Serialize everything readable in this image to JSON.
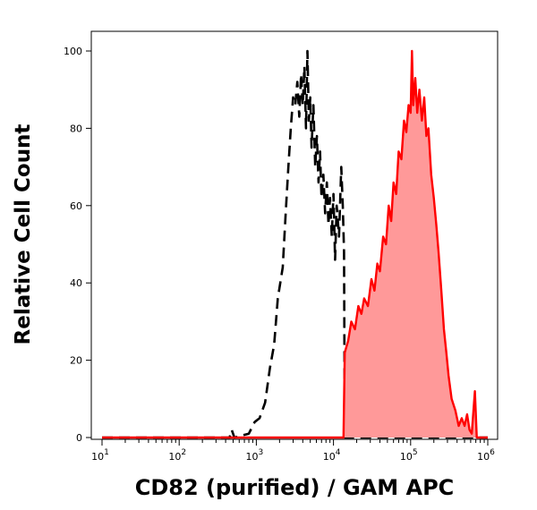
{
  "chart_data": {
    "type": "area",
    "xlabel": "CD82 (purified) / GAM APC",
    "ylabel": "Relative Cell Count",
    "x_scale": "log",
    "xlim": [
      10,
      1000000
    ],
    "ylim": [
      0,
      100
    ],
    "y_ticks": [
      0,
      20,
      40,
      60,
      80,
      100
    ],
    "x_ticks": [
      {
        "base": "10",
        "exp": "1",
        "value": 10
      },
      {
        "base": "10",
        "exp": "2",
        "value": 100
      },
      {
        "base": "10",
        "exp": "3",
        "value": 1000
      },
      {
        "base": "10",
        "exp": "4",
        "value": 10000
      },
      {
        "base": "10",
        "exp": "5",
        "value": 100000
      },
      {
        "base": "10",
        "exp": "6",
        "value": 1000000
      }
    ],
    "grid": false,
    "legend": "none",
    "series": [
      {
        "style": "dashed",
        "color": "#000000",
        "points": [
          [
            10,
            0
          ],
          [
            300,
            0
          ],
          [
            450,
            0
          ],
          [
            480,
            2
          ],
          [
            520,
            0
          ],
          [
            800,
            1
          ],
          [
            950,
            4
          ],
          [
            1100,
            5
          ],
          [
            1300,
            9
          ],
          [
            1500,
            18
          ],
          [
            1700,
            24
          ],
          [
            1900,
            36
          ],
          [
            2200,
            44
          ],
          [
            2400,
            58
          ],
          [
            2600,
            70
          ],
          [
            2800,
            80
          ],
          [
            3000,
            88
          ],
          [
            3200,
            86
          ],
          [
            3400,
            92
          ],
          [
            3600,
            83
          ],
          [
            3800,
            94
          ],
          [
            4000,
            86
          ],
          [
            4200,
            96
          ],
          [
            4400,
            80
          ],
          [
            4600,
            100
          ],
          [
            4800,
            82
          ],
          [
            5000,
            88
          ],
          [
            5200,
            75
          ],
          [
            5500,
            86
          ],
          [
            5800,
            70
          ],
          [
            6100,
            78
          ],
          [
            6400,
            66
          ],
          [
            6700,
            74
          ],
          [
            7000,
            62
          ],
          [
            7400,
            68
          ],
          [
            7800,
            58
          ],
          [
            8200,
            66
          ],
          [
            8600,
            55
          ],
          [
            9000,
            62
          ],
          [
            9500,
            52
          ],
          [
            10000,
            63
          ],
          [
            10500,
            46
          ],
          [
            11000,
            60
          ],
          [
            11800,
            52
          ],
          [
            12600,
            70
          ],
          [
            13200,
            60
          ],
          [
            13700,
            48
          ],
          [
            14000,
            0
          ],
          [
            14500,
            0
          ],
          [
            1000000,
            0
          ]
        ]
      },
      {
        "style": "filled",
        "color": "#ff0000",
        "fill": "#ff9999",
        "points": [
          [
            10,
            0
          ],
          [
            12000,
            0
          ],
          [
            13500,
            0
          ],
          [
            14000,
            22
          ],
          [
            15500,
            25
          ],
          [
            17000,
            30
          ],
          [
            19000,
            28
          ],
          [
            21000,
            34
          ],
          [
            23000,
            32
          ],
          [
            25000,
            36
          ],
          [
            28000,
            34
          ],
          [
            31000,
            41
          ],
          [
            34000,
            38
          ],
          [
            37000,
            45
          ],
          [
            40000,
            43
          ],
          [
            44000,
            52
          ],
          [
            48000,
            50
          ],
          [
            52000,
            60
          ],
          [
            56000,
            56
          ],
          [
            60000,
            66
          ],
          [
            65000,
            63
          ],
          [
            70000,
            74
          ],
          [
            76000,
            72
          ],
          [
            82000,
            82
          ],
          [
            88000,
            79
          ],
          [
            94000,
            86
          ],
          [
            100000,
            84
          ],
          [
            104000,
            100
          ],
          [
            108000,
            86
          ],
          [
            115000,
            93
          ],
          [
            122000,
            84
          ],
          [
            130000,
            90
          ],
          [
            140000,
            82
          ],
          [
            150000,
            88
          ],
          [
            160000,
            78
          ],
          [
            170000,
            80
          ],
          [
            185000,
            68
          ],
          [
            200000,
            62
          ],
          [
            215000,
            55
          ],
          [
            230000,
            48
          ],
          [
            250000,
            38
          ],
          [
            270000,
            28
          ],
          [
            290000,
            22
          ],
          [
            310000,
            16
          ],
          [
            340000,
            10
          ],
          [
            380000,
            7
          ],
          [
            420000,
            3
          ],
          [
            460000,
            5
          ],
          [
            500000,
            3
          ],
          [
            540000,
            6
          ],
          [
            580000,
            2
          ],
          [
            620000,
            1
          ],
          [
            680000,
            12
          ],
          [
            720000,
            0
          ],
          [
            1000000,
            0
          ]
        ]
      }
    ]
  }
}
